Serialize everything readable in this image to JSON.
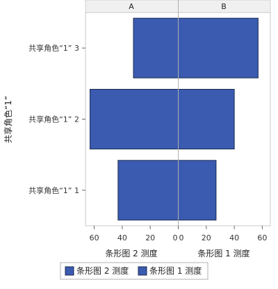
{
  "chart_data": {
    "type": "bar",
    "orientation": "horizontal",
    "layout": "paneled (butterfly)",
    "categories": [
      "共享角色“1” 3",
      "共享角色“1” 2",
      "共享角色“1” 1"
    ],
    "ylabel": "共享角色“1”",
    "panels": [
      {
        "header": "A",
        "xlabel": "条形图 2 测度",
        "direction": "reversed",
        "xlim": [
          0,
          66
        ],
        "ticks": [
          60,
          40,
          20,
          0
        ],
        "series": {
          "name": "条形图 2 测度",
          "values": [
            32,
            63,
            43
          ]
        }
      },
      {
        "header": "B",
        "xlabel": "条形图 1 测度",
        "direction": "normal",
        "xlim": [
          0,
          66
        ],
        "ticks": [
          0,
          20,
          40,
          60
        ],
        "series": {
          "name": "条形图 1 测度",
          "values": [
            57,
            40,
            27
          ]
        }
      }
    ],
    "legend": {
      "placement": "bottom",
      "entries": [
        "条形图 2 测度",
        "条形图 1 测度"
      ]
    },
    "bar_color": "#3A5BB0",
    "bar_edge_color": "#1A2A50",
    "grid": false
  }
}
